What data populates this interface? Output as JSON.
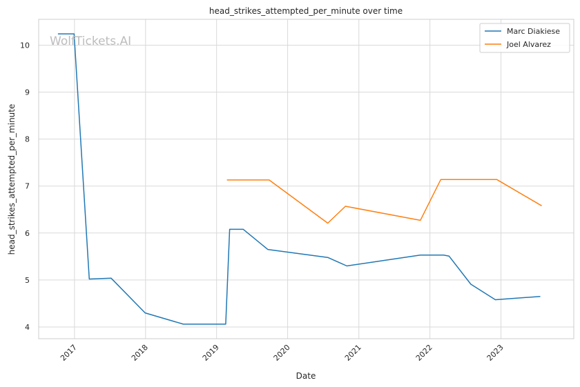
{
  "chart_data": {
    "type": "line",
    "title": "head_strikes_attempted_per_minute over time",
    "xlabel": "Date",
    "ylabel": "head_strikes_attempted_per_minute",
    "watermark": "WolfTickets.AI",
    "x_range": [
      "2016-07-01",
      "2024-01-10"
    ],
    "ylim": [
      3.75,
      10.55
    ],
    "x_ticks": [
      "2017",
      "2018",
      "2019",
      "2020",
      "2021",
      "2022",
      "2023"
    ],
    "y_ticks": [
      4,
      5,
      6,
      7,
      8,
      9,
      10
    ],
    "grid": true,
    "legend_position": "top-right",
    "series": [
      {
        "name": "Marc Diakiese",
        "color": "#1f77b4",
        "points": [
          [
            "2016-10-08",
            10.24
          ],
          [
            "2016-12-30",
            10.24
          ],
          [
            "2017-03-18",
            5.02
          ],
          [
            "2017-07-08",
            5.04
          ],
          [
            "2017-12-30",
            4.3
          ],
          [
            "2018-07-14",
            4.06
          ],
          [
            "2019-02-17",
            4.06
          ],
          [
            "2019-03-09",
            6.08
          ],
          [
            "2019-05-18",
            6.08
          ],
          [
            "2019-09-21",
            5.65
          ],
          [
            "2020-07-25",
            5.48
          ],
          [
            "2020-10-31",
            5.3
          ],
          [
            "2021-11-13",
            5.53
          ],
          [
            "2022-03-12",
            5.53
          ],
          [
            "2022-04-09",
            5.51
          ],
          [
            "2022-07-30",
            4.91
          ],
          [
            "2022-12-03",
            4.58
          ],
          [
            "2023-07-22",
            4.65
          ]
        ]
      },
      {
        "name": "Joel Alvarez",
        "color": "#ff7f0e",
        "points": [
          [
            "2019-02-23",
            7.13
          ],
          [
            "2019-09-28",
            7.13
          ],
          [
            "2020-07-25",
            6.21
          ],
          [
            "2020-10-24",
            6.57
          ],
          [
            "2021-11-13",
            6.27
          ],
          [
            "2022-02-26",
            7.14
          ],
          [
            "2022-12-10",
            7.14
          ],
          [
            "2023-07-29",
            6.58
          ]
        ]
      }
    ]
  }
}
